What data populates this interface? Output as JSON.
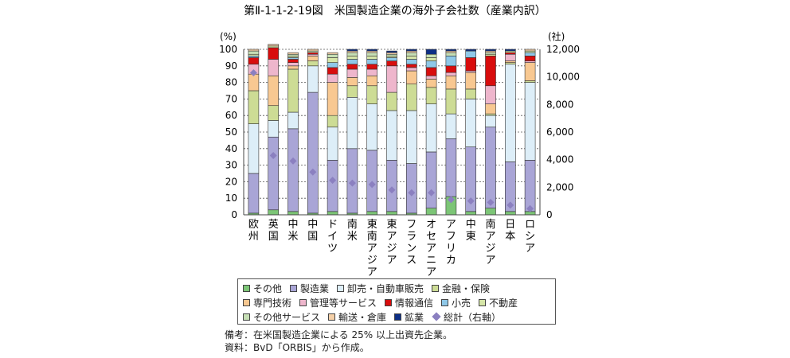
{
  "chart_data": {
    "type": "stacked-bar",
    "title": "第Ⅱ-1-1-2-19図　米国製造企業の海外子会社数（産業内訳）",
    "left_axis_unit": "(%)",
    "right_axis_unit": "(社)",
    "ylim_left": [
      0,
      100
    ],
    "ylim_right": [
      0,
      12000
    ],
    "left_ticks": [
      "0",
      "10",
      "20",
      "30",
      "40",
      "50",
      "60",
      "70",
      "80",
      "90",
      "100"
    ],
    "right_ticks": [
      "0",
      "2,000",
      "4,000",
      "6,000",
      "8,000",
      "10,000",
      "12,000"
    ],
    "categories": [
      "欧州",
      "英国",
      "中米",
      "中国",
      "ドイツ",
      "南米",
      "東南アジア",
      "東アジア",
      "フランス",
      "オセアニア",
      "アフリカ",
      "中東",
      "南アジア",
      "日本",
      "ロシア"
    ],
    "series": [
      {
        "name": "その他",
        "color": "#7cc576",
        "values": [
          1,
          3,
          2,
          1,
          2,
          1,
          2,
          2,
          1,
          4,
          11,
          2,
          4,
          2,
          2
        ]
      },
      {
        "name": "製造業",
        "color": "#a9a5d6",
        "values": [
          24,
          44,
          50,
          73,
          31,
          39,
          37,
          31,
          30,
          34,
          35,
          39,
          49,
          30,
          31
        ]
      },
      {
        "name": "卸売・自動車販売",
        "color": "#ddeef8",
        "values": [
          30,
          10,
          10,
          16,
          20,
          31,
          28,
          30,
          32,
          29,
          15,
          29,
          7,
          59,
          47
        ]
      },
      {
        "name": "金融・保険",
        "color": "#cddc95",
        "values": [
          20,
          9,
          26,
          3,
          7,
          7,
          11,
          11,
          16,
          10,
          15,
          6,
          1,
          1,
          1
        ]
      },
      {
        "name": "専門技術",
        "color": "#f8c891",
        "values": [
          10,
          18,
          2,
          3,
          20,
          5,
          6,
          0,
          8,
          5,
          8,
          10,
          6,
          1,
          11
        ]
      },
      {
        "name": "管理等サービス",
        "color": "#eeb6cc",
        "values": [
          6,
          10,
          2,
          1,
          5,
          5,
          4,
          16,
          2,
          2,
          2,
          1,
          11,
          4,
          1
        ]
      },
      {
        "name": "情報通信",
        "color": "#d80d0d",
        "values": [
          4,
          7,
          2,
          1,
          4,
          3,
          3,
          3,
          2,
          5,
          4,
          8,
          18,
          1,
          3
        ]
      },
      {
        "name": "小売",
        "color": "#8fc8e8",
        "values": [
          1,
          0,
          1,
          0,
          3,
          3,
          3,
          2,
          3,
          4,
          6,
          4,
          0,
          0,
          2
        ]
      },
      {
        "name": "不動産",
        "color": "#d6e6a8",
        "values": [
          1,
          1,
          1,
          0,
          3,
          2,
          2,
          1,
          2,
          2,
          0,
          0,
          1,
          1,
          1
        ]
      },
      {
        "name": "その他サービス",
        "color": "#c6dfb5",
        "values": [
          2,
          0,
          1,
          1,
          2,
          2,
          2,
          1,
          2,
          2,
          2,
          0,
          1,
          0,
          0
        ]
      },
      {
        "name": "輸送・倉庫",
        "color": "#f5d0a8",
        "values": [
          1,
          1,
          1,
          1,
          1,
          1,
          1,
          1,
          1,
          0,
          1,
          0,
          1,
          0,
          1
        ]
      },
      {
        "name": "鉱業",
        "color": "#0d2f86",
        "values": [
          0,
          0,
          0,
          0,
          0,
          1,
          1,
          1,
          1,
          3,
          1,
          1,
          1,
          1,
          0
        ]
      }
    ],
    "total_series": {
      "name": "総計（右軸）",
      "color": "#8b80c0",
      "values": [
        10300,
        4300,
        3900,
        3100,
        2500,
        2300,
        2200,
        1800,
        1600,
        1600,
        1100,
        1000,
        900,
        700,
        450
      ]
    }
  },
  "legend": {
    "rows": [
      [
        {
          "label": "その他",
          "color": "#7cc576"
        },
        {
          "label": "製造業",
          "color": "#a9a5d6"
        },
        {
          "label": "卸売・自動車販売",
          "color": "#ddeef8"
        },
        {
          "label": "金融・保険",
          "color": "#cddc95"
        }
      ],
      [
        {
          "label": "専門技術",
          "color": "#f8c891"
        },
        {
          "label": "管理等サービス",
          "color": "#eeb6cc"
        },
        {
          "label": "情報通信",
          "color": "#d80d0d"
        },
        {
          "label": "小売",
          "color": "#8fc8e8"
        },
        {
          "label": "不動産",
          "color": "#d6e6a8"
        }
      ],
      [
        {
          "label": "その他サービス",
          "color": "#c6dfb5"
        },
        {
          "label": "輸送・倉庫",
          "color": "#f5d0a8"
        },
        {
          "label": "鉱業",
          "color": "#0d2f86"
        },
        {
          "label": "総計（右軸）",
          "color": "#8b80c0",
          "marker": "diamond"
        }
      ]
    ]
  },
  "notes": {
    "remark": "備考：在米国製造企業による 25% 以上出資先企業。",
    "source": "資料：BvD「ORBIS」から作成。"
  }
}
